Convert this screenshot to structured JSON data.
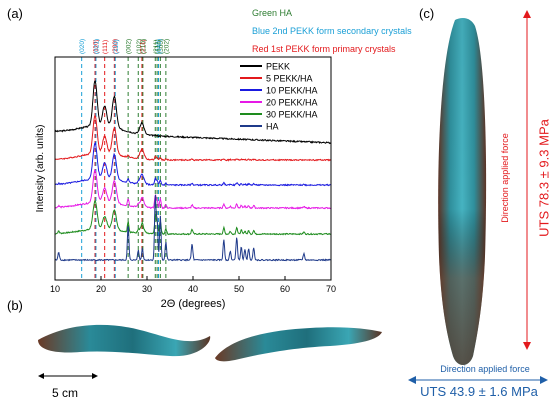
{
  "panels": {
    "a": "(a)",
    "b": "(b)",
    "c": "(c)"
  },
  "annotations_top": {
    "green": "Green HA",
    "blue": "Blue 2nd PEKK form secondary crystals",
    "red": "Red 1st PEKK form primary crystals"
  },
  "scale_bar": "5 cm",
  "force_vertical": {
    "label": "Direction applied force",
    "uts": "UTS 78.3 ± 9.3 MPa"
  },
  "force_horizontal": {
    "label": "Direction applied force",
    "uts": "UTS 43.9 ± 1.6 MPa"
  },
  "colors": {
    "red_text": "#e3191c",
    "blue_text": "#1f5fa8",
    "green_text": "#2e7d32"
  },
  "chart_data": {
    "type": "line",
    "xlabel": "2Θ (degrees)",
    "ylabel": "Intensity (arb. units)",
    "xlim": [
      10,
      70
    ],
    "xticks": [
      10,
      20,
      30,
      40,
      50,
      60,
      70
    ],
    "legend_position": "top-right",
    "series": [
      {
        "name": "PEKK",
        "color": "#000000"
      },
      {
        "name": "5 PEKK/HA",
        "color": "#e3191c"
      },
      {
        "name": "10 PEKK/HA",
        "color": "#1a1ae0"
      },
      {
        "name": "20 PEKK/HA",
        "color": "#e619e6"
      },
      {
        "name": "30 PEKK/HA",
        "color": "#1e8c1e"
      },
      {
        "name": "HA",
        "color": "#1f3a8a"
      }
    ],
    "reference_lines": [
      {
        "x": 15.8,
        "label": "(020)",
        "color": "#1a9fd6"
      },
      {
        "x": 18.7,
        "label": "(110)",
        "color": "#e3191c"
      },
      {
        "x": 18.9,
        "label": "(021)",
        "color": "#1a9fd6"
      },
      {
        "x": 20.8,
        "label": "(111)",
        "color": "#e3191c"
      },
      {
        "x": 22.9,
        "label": "(200)",
        "color": "#e3191c"
      },
      {
        "x": 23.1,
        "label": "(110)",
        "color": "#1a9fd6"
      },
      {
        "x": 25.9,
        "label": "(002)",
        "color": "#2e7d32"
      },
      {
        "x": 28.1,
        "label": "(102)",
        "color": "#2e7d32"
      },
      {
        "x": 28.9,
        "label": "(211)",
        "color": "#e3191c"
      },
      {
        "x": 29.1,
        "label": "(210)",
        "color": "#2e7d32"
      },
      {
        "x": 31.8,
        "label": "(211)",
        "color": "#2e7d32"
      },
      {
        "x": 32.2,
        "label": "(112)",
        "color": "#2e7d32"
      },
      {
        "x": 32.9,
        "label": "(300)",
        "color": "#2e7d32"
      },
      {
        "x": 34.1,
        "label": "(202)",
        "color": "#2e7d32"
      },
      {
        "x": 32.5,
        "label": "(040)",
        "color": "#1a9fd6"
      }
    ],
    "pekk_peaks": [
      {
        "x": 18.7,
        "i": 1.0
      },
      {
        "x": 20.8,
        "i": 0.45
      },
      {
        "x": 22.9,
        "i": 0.7
      },
      {
        "x": 28.9,
        "i": 0.25
      }
    ],
    "ha_peaks": [
      {
        "x": 10.8,
        "i": 0.12
      },
      {
        "x": 25.9,
        "i": 0.55
      },
      {
        "x": 28.1,
        "i": 0.15
      },
      {
        "x": 29.0,
        "i": 0.18
      },
      {
        "x": 31.8,
        "i": 1.0
      },
      {
        "x": 32.2,
        "i": 0.62
      },
      {
        "x": 32.9,
        "i": 0.7
      },
      {
        "x": 34.1,
        "i": 0.28
      },
      {
        "x": 39.8,
        "i": 0.25
      },
      {
        "x": 46.7,
        "i": 0.32
      },
      {
        "x": 48.1,
        "i": 0.14
      },
      {
        "x": 49.5,
        "i": 0.36
      },
      {
        "x": 50.5,
        "i": 0.2
      },
      {
        "x": 51.3,
        "i": 0.16
      },
      {
        "x": 52.1,
        "i": 0.17
      },
      {
        "x": 53.2,
        "i": 0.2
      },
      {
        "x": 64.1,
        "i": 0.1
      }
    ]
  }
}
